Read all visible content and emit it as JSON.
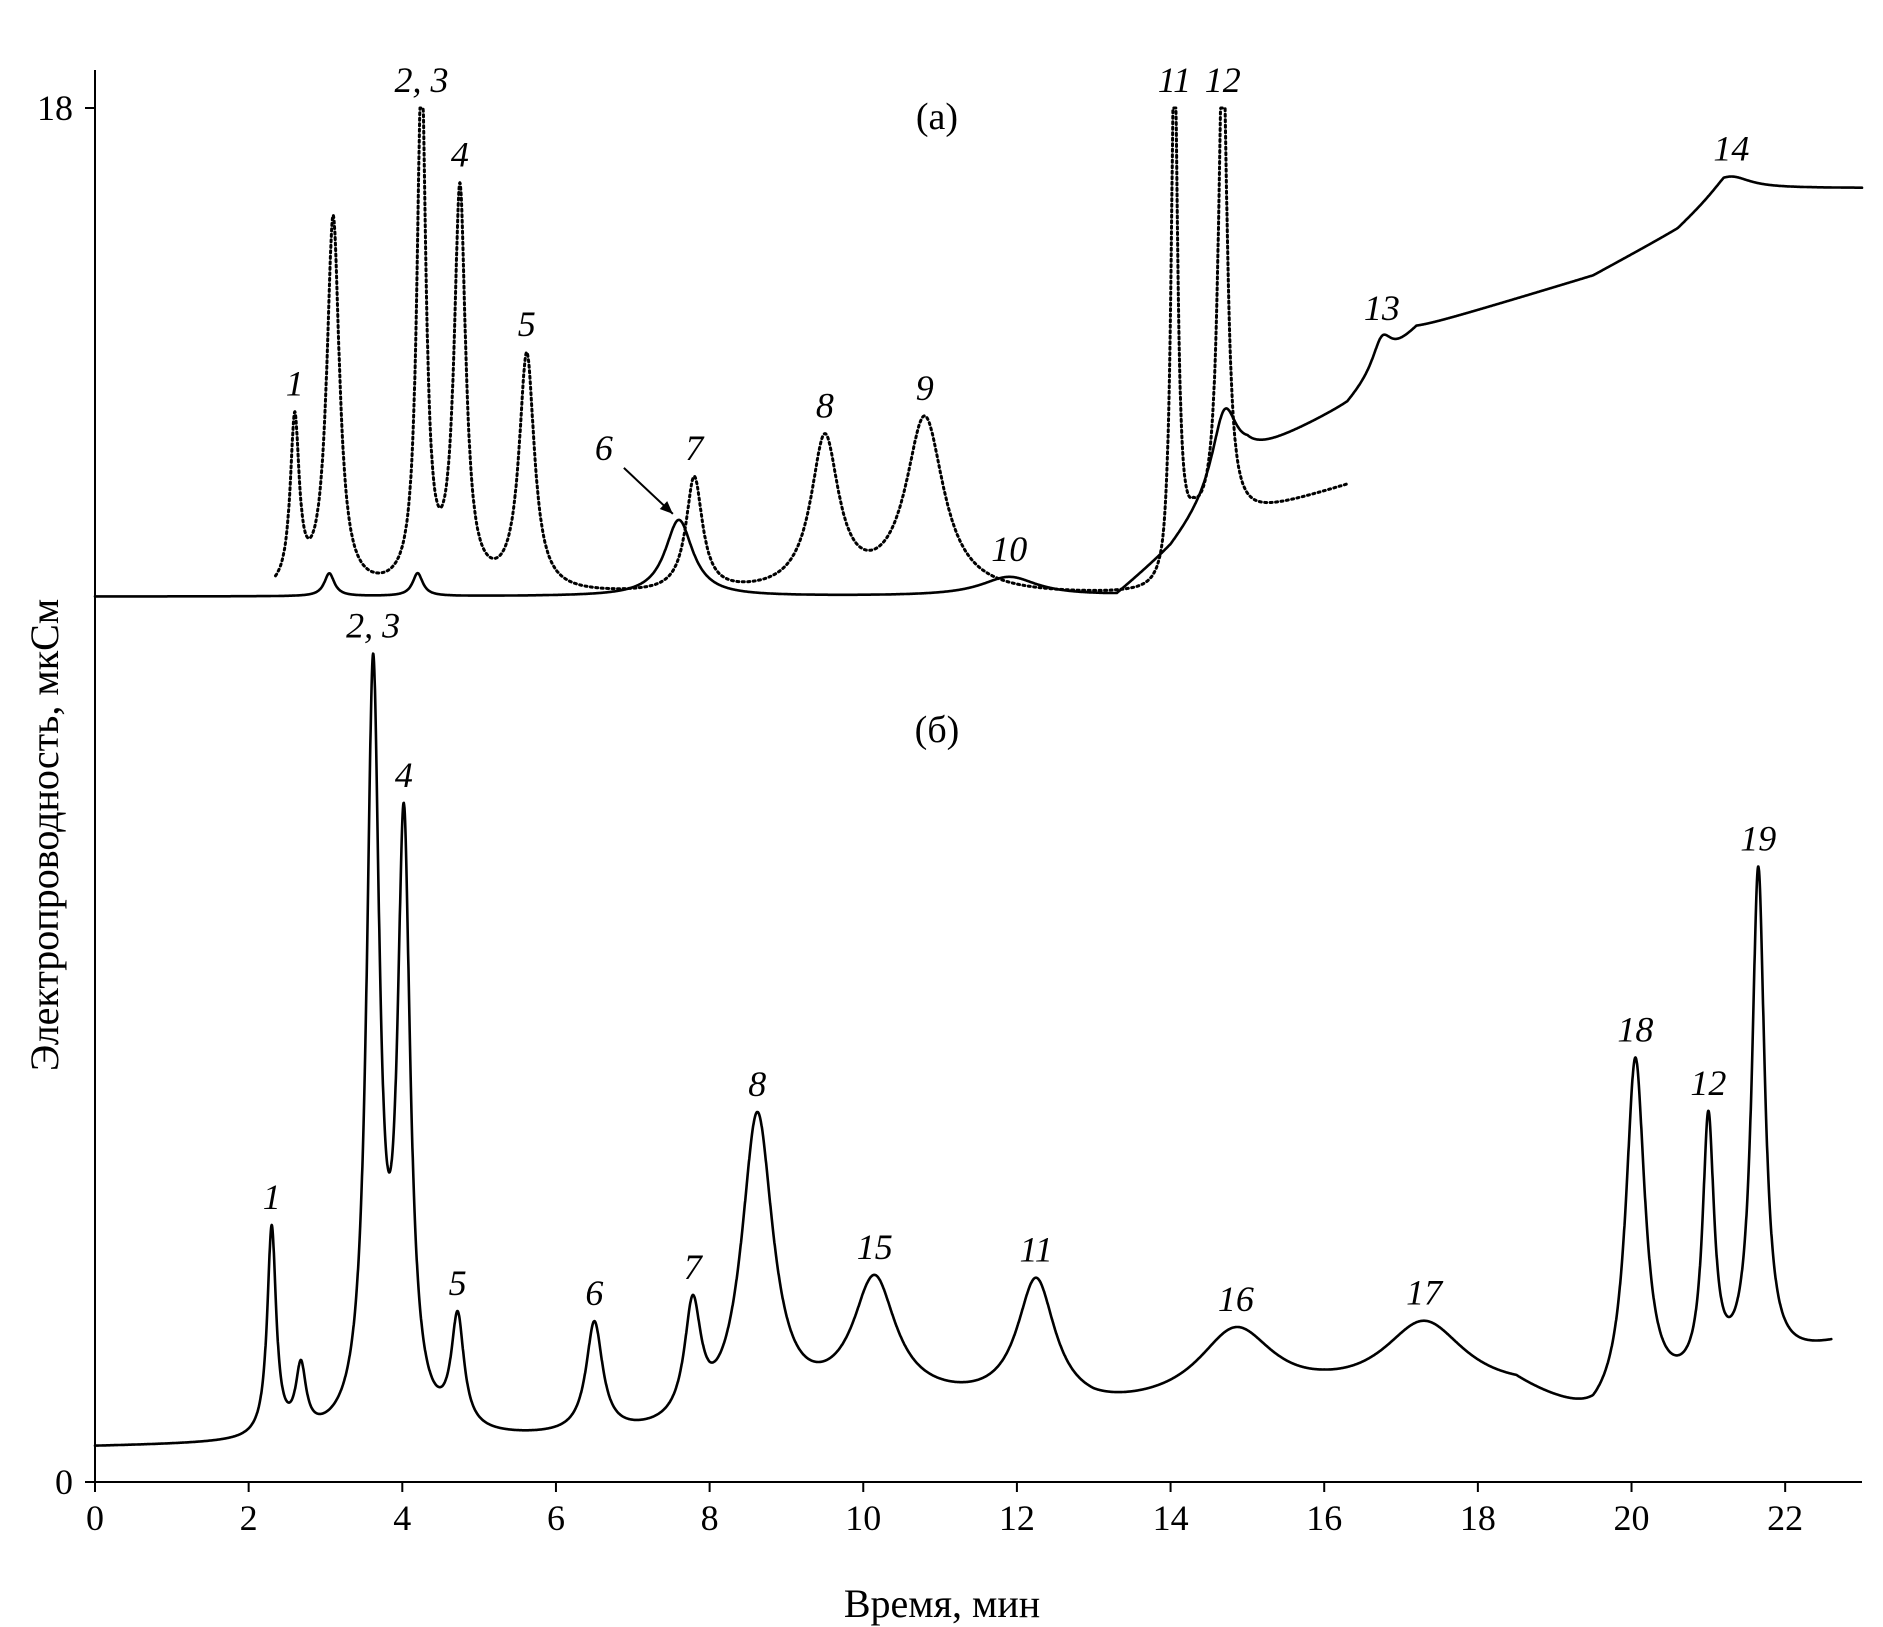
{
  "chart_data": {
    "type": "line",
    "xlabel": "Время, мин",
    "ylabel": "Электропроводность, мкСм",
    "xlim": [
      0,
      23
    ],
    "ylim": [
      0,
      18
    ],
    "x_ticks": [
      "0",
      "2",
      "4",
      "6",
      "8",
      "10",
      "12",
      "14",
      "16",
      "18",
      "20",
      "22"
    ],
    "y_ticks": [
      "0",
      "18"
    ],
    "grid": false,
    "panels": [
      {
        "label": "(а)",
        "offset": 11.5,
        "series": [
          {
            "style": "solid",
            "baseline": 0.1,
            "baseline_end": 0.5,
            "drift": [
              [
                0,
                0.0
              ],
              [
                13.3,
                0.0
              ],
              [
                14.0,
                0.6
              ],
              [
                15.0,
                1.8
              ],
              [
                16.3,
                2.5
              ],
              [
                17.2,
                3.5
              ],
              [
                19.5,
                4.2
              ],
              [
                20.6,
                4.8
              ],
              [
                21.2,
                5.35
              ],
              [
                23.0,
                5.35
              ]
            ],
            "peaks": [
              {
                "label": "",
                "x": 3.05,
                "h": 0.3,
                "w": 0.08
              },
              {
                "label": "",
                "x": 4.2,
                "h": 0.3,
                "w": 0.08
              },
              {
                "label": "6",
                "x": 7.6,
                "h": 1.0,
                "w": 0.22
              },
              {
                "label": "10",
                "x": 11.9,
                "h": 0.25,
                "w": 0.45
              },
              {
                "label": "",
                "x": 14.7,
                "h": 1.0,
                "w": 0.2
              },
              {
                "label": "13",
                "x": 16.75,
                "h": 0.4,
                "w": 0.15
              },
              {
                "label": "14",
                "x": 21.3,
                "h": 0.15,
                "w": 0.3
              }
            ]
          },
          {
            "style": "dotted",
            "baseline": 0.1,
            "x_range": [
              2.35,
              16.3
            ],
            "drift": [
              [
                0,
                0.0
              ],
              [
                13.9,
                0.0
              ],
              [
                14.3,
                0.8
              ],
              [
                16.3,
                1.45
              ]
            ],
            "peaks": [
              {
                "label": "1",
                "x": 2.6,
                "h": 2.2,
                "w": 0.07
              },
              {
                "label": "",
                "x": 3.1,
                "h": 4.9,
                "w": 0.1
              },
              {
                "label": "2, 3",
                "x": 4.25,
                "h": 6.8,
                "w": 0.07
              },
              {
                "label": "4",
                "x": 4.75,
                "h": 5.2,
                "w": 0.09
              },
              {
                "label": "5",
                "x": 5.62,
                "h": 3.1,
                "w": 0.12
              },
              {
                "label": "7",
                "x": 7.8,
                "h": 1.5,
                "w": 0.13
              },
              {
                "label": "8",
                "x": 9.5,
                "h": 2.0,
                "w": 0.22
              },
              {
                "label": "9",
                "x": 10.8,
                "h": 2.3,
                "w": 0.3
              },
              {
                "label": "11",
                "x": 14.05,
                "h": 7.0,
                "w": 0.05
              },
              {
                "label": "12",
                "x": 14.68,
                "h": 6.4,
                "w": 0.07
              }
            ]
          }
        ]
      },
      {
        "label": "(б)",
        "offset": 0,
        "series": [
          {
            "style": "solid",
            "baseline": 0.45,
            "x_range": [
              0,
              22.6
            ],
            "drift": [
              [
                0,
                0.0
              ],
              [
                8.0,
                0.1
              ],
              [
                10.0,
                0.6
              ],
              [
                13.0,
                0.4
              ],
              [
                16.0,
                0.6
              ],
              [
                18.5,
                0.65
              ],
              [
                19.5,
                0.25
              ],
              [
                22.6,
                1.3
              ]
            ],
            "peaks": [
              {
                "label": "1",
                "x": 2.3,
                "h": 2.75,
                "w": 0.07
              },
              {
                "label": "",
                "x": 2.68,
                "h": 0.85,
                "w": 0.08
              },
              {
                "label": "2, 3",
                "x": 3.62,
                "h": 9.85,
                "w": 0.1
              },
              {
                "label": "4",
                "x": 4.02,
                "h": 7.75,
                "w": 0.1
              },
              {
                "label": "5",
                "x": 4.72,
                "h": 1.45,
                "w": 0.1
              },
              {
                "label": "6",
                "x": 6.5,
                "h": 1.45,
                "w": 0.13
              },
              {
                "label": "7",
                "x": 7.78,
                "h": 1.5,
                "w": 0.13
              },
              {
                "label": "8",
                "x": 8.62,
                "h": 4.0,
                "w": 0.25
              },
              {
                "label": "15",
                "x": 10.15,
                "h": 1.5,
                "w": 0.33
              },
              {
                "label": "11",
                "x": 12.25,
                "h": 1.65,
                "w": 0.3
              },
              {
                "label": "16",
                "x": 14.85,
                "h": 0.95,
                "w": 0.6
              },
              {
                "label": "17",
                "x": 17.3,
                "h": 0.95,
                "w": 0.65
              },
              {
                "label": "18",
                "x": 20.05,
                "h": 4.55,
                "w": 0.15
              },
              {
                "label": "12",
                "x": 21.0,
                "h": 3.35,
                "w": 0.09
              },
              {
                "label": "19",
                "x": 21.65,
                "h": 6.5,
                "w": 0.1
              }
            ]
          }
        ]
      }
    ]
  }
}
